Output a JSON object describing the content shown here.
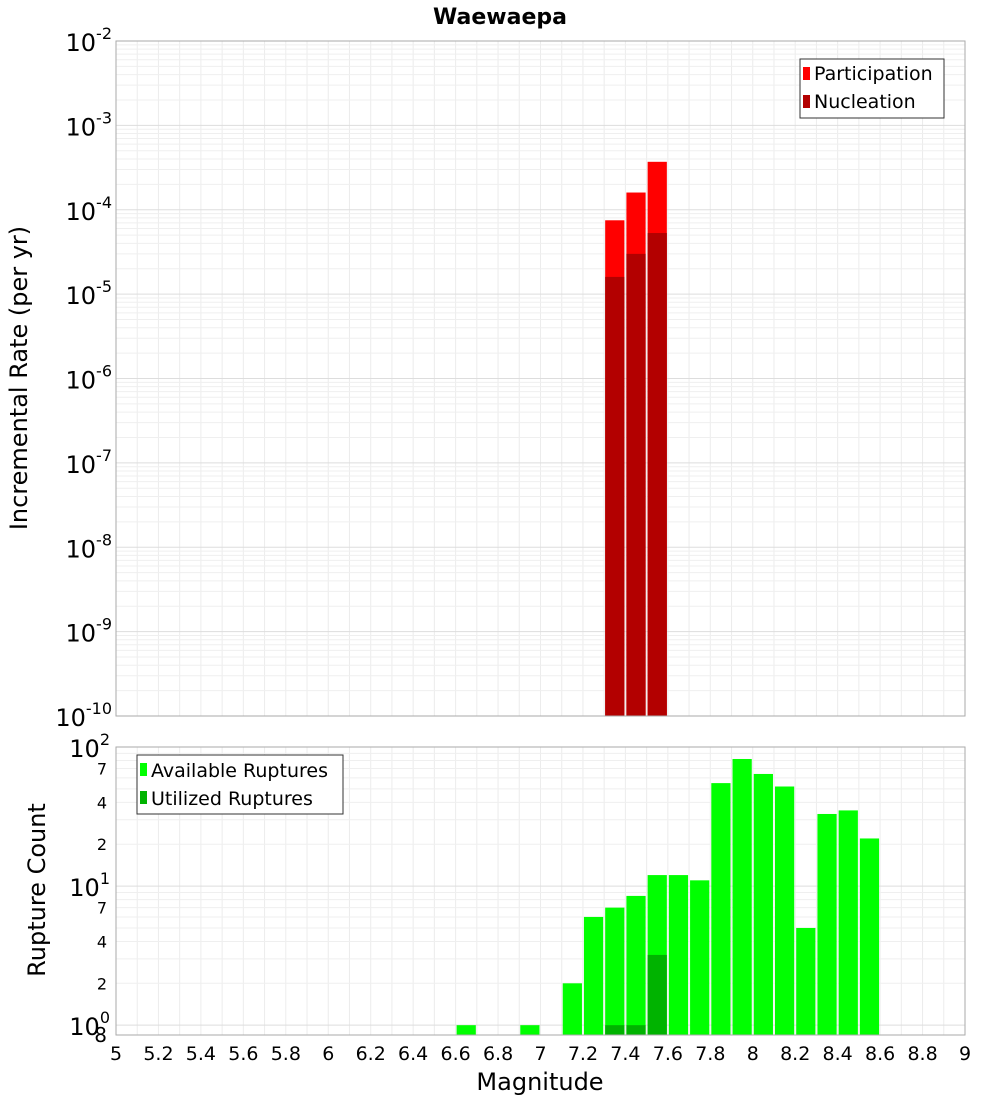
{
  "chart_data": [
    {
      "type": "bar",
      "title": "Waewaepa",
      "xlabel": "",
      "ylabel": "Incremental Rate (per yr)",
      "scale": "log",
      "ylim": [
        1e-10,
        0.01
      ],
      "xlim": [
        5,
        9
      ],
      "y_ticks": [
        {
          "base": "10",
          "exp": "-2"
        },
        {
          "base": "10",
          "exp": "-3"
        },
        {
          "base": "10",
          "exp": "-4"
        },
        {
          "base": "10",
          "exp": "-5"
        },
        {
          "base": "10",
          "exp": "-6"
        },
        {
          "base": "10",
          "exp": "-7"
        },
        {
          "base": "10",
          "exp": "-8"
        },
        {
          "base": "10",
          "exp": "-9"
        },
        {
          "base": "10",
          "exp": "-10"
        }
      ],
      "grid": true,
      "legend_position": "top-right",
      "bar_width": 0.1,
      "series": [
        {
          "name": "Participation",
          "color": "#ff0000",
          "x": [
            7.35,
            7.45,
            7.55
          ],
          "values": [
            7.5e-05,
            0.00016,
            0.00037
          ]
        },
        {
          "name": "Nucleation",
          "color": "#b30000",
          "x": [
            7.35,
            7.45,
            7.55
          ],
          "values": [
            1.6e-05,
            3e-05,
            5.3e-05
          ]
        }
      ]
    },
    {
      "type": "bar",
      "title": "",
      "xlabel": "Magnitude",
      "ylabel": "Rupture Count",
      "scale": "log",
      "ylim": [
        0.85,
        100
      ],
      "xlim": [
        5,
        9
      ],
      "x_ticks": [
        "5",
        "5.2",
        "5.4",
        "5.6",
        "5.8",
        "6",
        "6.2",
        "6.4",
        "6.6",
        "6.8",
        "7",
        "7.2",
        "7.4",
        "7.6",
        "7.8",
        "8",
        "8.2",
        "8.4",
        "8.6",
        "8.8",
        "9"
      ],
      "y_major_ticks": [
        {
          "base": "10",
          "exp": "2",
          "value": 100
        },
        {
          "base": "10",
          "exp": "1",
          "value": 10
        },
        {
          "base": "10",
          "exp": "0",
          "value": 1
        }
      ],
      "y_minor_ticks": [
        {
          "label": "7",
          "value": 70
        },
        {
          "label": "4",
          "value": 40
        },
        {
          "label": "2",
          "value": 20
        },
        {
          "label": "7",
          "value": 7
        },
        {
          "label": "4",
          "value": 4
        },
        {
          "label": "2",
          "value": 2
        },
        {
          "label": "8",
          "value": 0.85
        }
      ],
      "grid": true,
      "legend_position": "top-left",
      "bar_width": 0.1,
      "series": [
        {
          "name": "Available Ruptures",
          "color": "#00ff00",
          "x": [
            6.65,
            6.95,
            7.15,
            7.25,
            7.35,
            7.45,
            7.55,
            7.65,
            7.75,
            7.85,
            7.95,
            8.05,
            8.15,
            8.25,
            8.35,
            8.45,
            8.55
          ],
          "values": [
            1,
            1,
            2,
            6,
            7,
            8.5,
            12,
            12,
            11,
            55,
            82,
            64,
            52,
            5,
            33,
            35,
            22
          ]
        },
        {
          "name": "Utilized Ruptures",
          "color": "#00b300",
          "x": [
            7.35,
            7.45,
            7.55
          ],
          "values": [
            1,
            1,
            3.2
          ]
        }
      ]
    }
  ]
}
